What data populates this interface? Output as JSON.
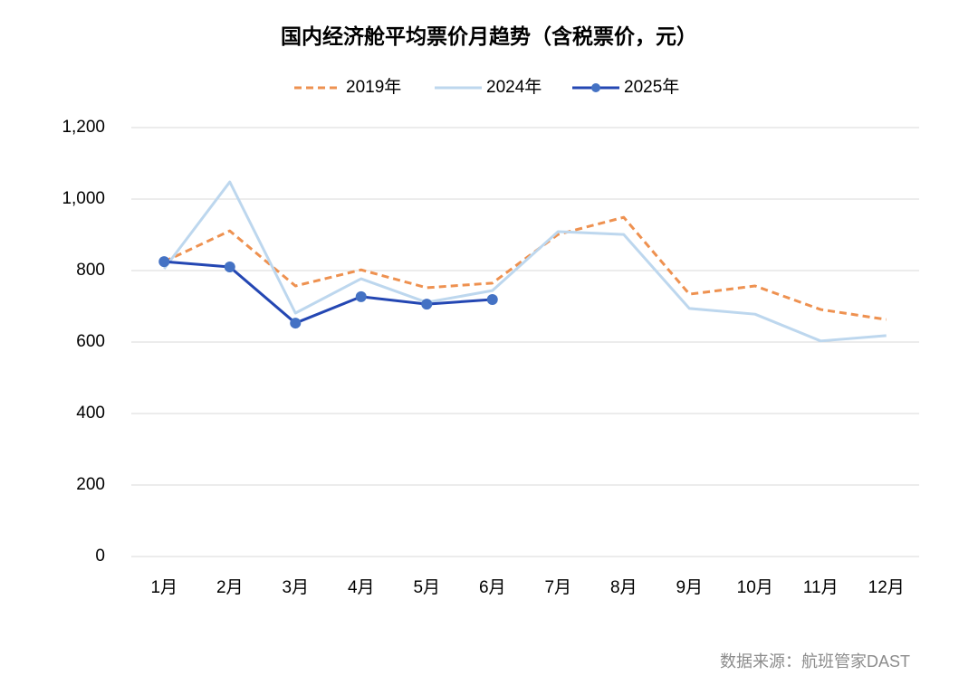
{
  "chart_data": {
    "type": "line",
    "title": "国内经济舱平均票价月趋势（含税票价，元）",
    "categories": [
      "1月",
      "2月",
      "3月",
      "4月",
      "5月",
      "6月",
      "7月",
      "8月",
      "9月",
      "10月",
      "11月",
      "12月"
    ],
    "series": [
      {
        "name": "2019年",
        "color": "#ee9150",
        "dashed": true,
        "values": [
          825,
          911,
          757,
          802,
          752,
          765,
          901,
          949,
          734,
          757,
          691,
          663
        ]
      },
      {
        "name": "2024年",
        "color": "#bdd7ee",
        "values": [
          805,
          1048,
          681,
          777,
          711,
          744,
          909,
          901,
          694,
          678,
          603,
          618
        ]
      },
      {
        "name": "2025年",
        "color": "#2447b3",
        "marker_color": "#4472c4",
        "markers": true,
        "values": [
          825,
          810,
          653,
          727,
          706,
          719,
          null,
          null,
          null,
          null,
          null,
          null
        ]
      }
    ],
    "ylim": [
      0,
      1200
    ],
    "yticks": [
      0,
      200,
      400,
      600,
      800,
      {
        "value": 1000,
        "label": "1,000"
      },
      {
        "value": 1200,
        "label": "1,200"
      }
    ],
    "grid": true,
    "legend": "top",
    "note": "数据来源：航班管家DAST"
  }
}
